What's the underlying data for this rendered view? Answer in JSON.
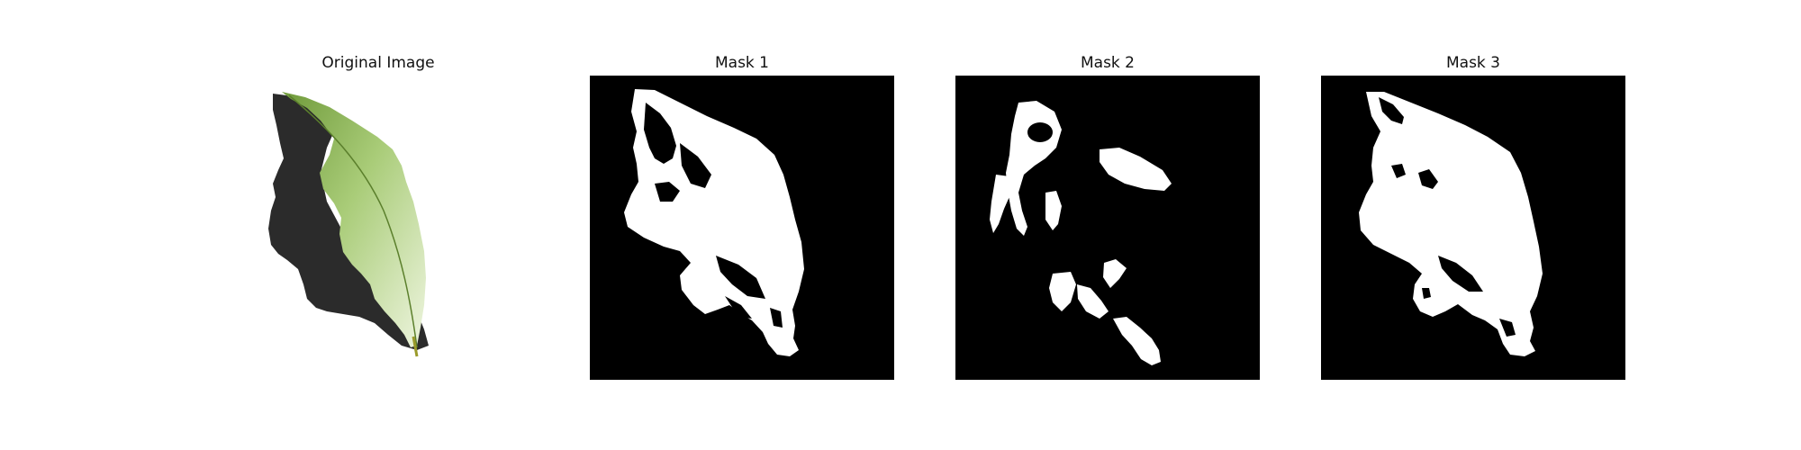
{
  "panels": [
    {
      "title": "Original Image",
      "kind": "photo",
      "subject": "leaf-on-white-with-shadow"
    },
    {
      "title": "Mask 1",
      "kind": "binary-mask"
    },
    {
      "title": "Mask 2",
      "kind": "binary-mask"
    },
    {
      "title": "Mask 3",
      "kind": "binary-mask"
    }
  ],
  "colors": {
    "background": "#ffffff",
    "mask_background": "#000000",
    "mask_foreground": "#ffffff",
    "shadow": "#2a2a2a",
    "leaf_light": "#d9ecb8",
    "leaf_dark": "#6f9a3a"
  }
}
